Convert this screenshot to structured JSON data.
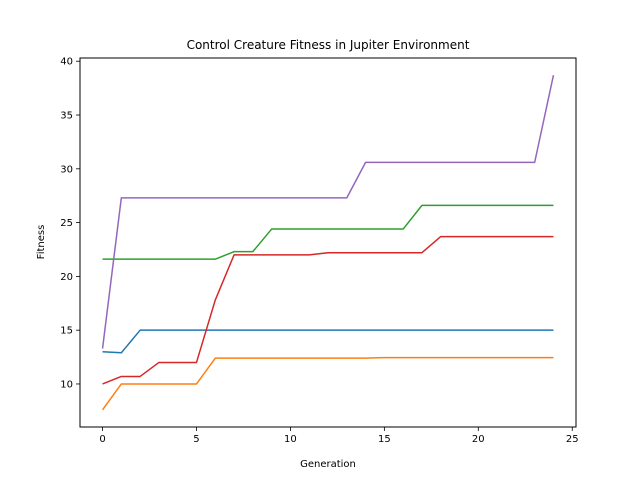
{
  "chart_data": {
    "type": "line",
    "title": "Control Creature Fitness in Jupiter Environment",
    "xlabel": "Generation",
    "ylabel": "Fitness",
    "xlim": [
      -1.2,
      25.2
    ],
    "ylim": [
      6.0,
      40.3
    ],
    "xticks": [
      0,
      5,
      10,
      15,
      20,
      25
    ],
    "yticks": [
      10,
      15,
      20,
      25,
      30,
      35,
      40
    ],
    "grid": false,
    "legend": "none",
    "x": [
      0,
      1,
      2,
      3,
      4,
      5,
      6,
      7,
      8,
      9,
      10,
      11,
      12,
      13,
      14,
      15,
      16,
      17,
      18,
      19,
      20,
      21,
      22,
      23,
      24
    ],
    "series": [
      {
        "color": "#1f77b4",
        "values": [
          13.0,
          12.9,
          15.0,
          15.0,
          15.0,
          15.0,
          15.0,
          15.0,
          15.0,
          15.0,
          15.0,
          15.0,
          15.0,
          15.0,
          15.0,
          15.0,
          15.0,
          15.0,
          15.0,
          15.0,
          15.0,
          15.0,
          15.0,
          15.0,
          15.0
        ]
      },
      {
        "color": "#ff7f0e",
        "values": [
          7.6,
          10.0,
          10.0,
          10.0,
          10.0,
          10.0,
          12.4,
          12.4,
          12.4,
          12.4,
          12.4,
          12.4,
          12.4,
          12.4,
          12.4,
          12.45,
          12.45,
          12.45,
          12.45,
          12.45,
          12.45,
          12.45,
          12.45,
          12.45,
          12.45
        ]
      },
      {
        "color": "#2ca02c",
        "values": [
          21.6,
          21.6,
          21.6,
          21.6,
          21.6,
          21.6,
          21.6,
          22.3,
          22.3,
          24.4,
          24.4,
          24.4,
          24.4,
          24.4,
          24.4,
          24.4,
          24.4,
          26.6,
          26.6,
          26.6,
          26.6,
          26.6,
          26.6,
          26.6,
          26.6
        ]
      },
      {
        "color": "#d62728",
        "values": [
          10.0,
          10.7,
          10.7,
          12.0,
          12.0,
          12.0,
          17.8,
          22.0,
          22.0,
          22.0,
          22.0,
          22.0,
          22.2,
          22.2,
          22.2,
          22.2,
          22.2,
          22.2,
          23.7,
          23.7,
          23.7,
          23.7,
          23.7,
          23.7,
          23.7
        ]
      },
      {
        "color": "#9467bd",
        "values": [
          13.3,
          27.3,
          27.3,
          27.3,
          27.3,
          27.3,
          27.3,
          27.3,
          27.3,
          27.3,
          27.3,
          27.3,
          27.3,
          27.3,
          30.6,
          30.6,
          30.6,
          30.6,
          30.6,
          30.6,
          30.6,
          30.6,
          30.6,
          30.6,
          38.7
        ]
      }
    ]
  }
}
